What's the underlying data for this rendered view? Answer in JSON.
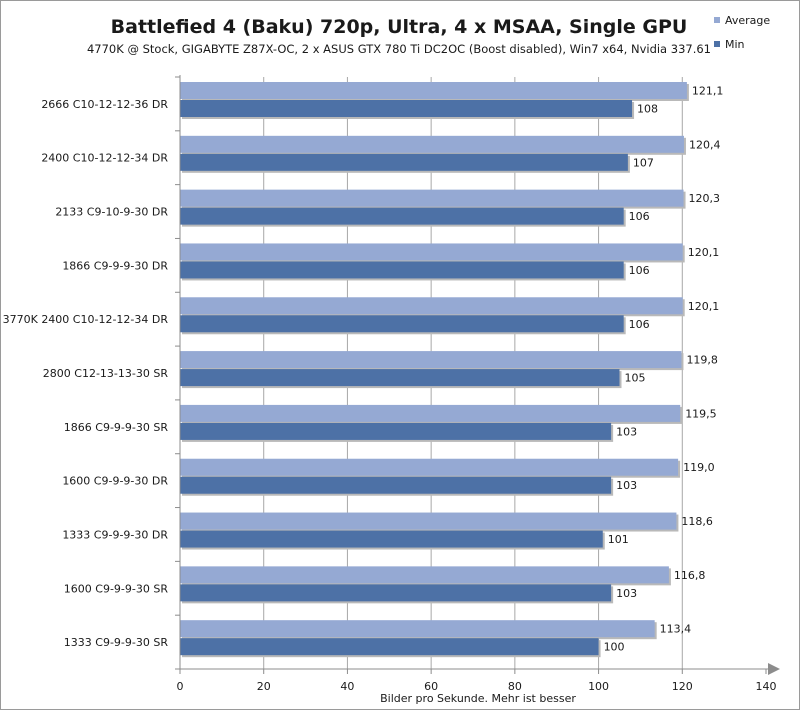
{
  "chart_data": {
    "type": "bar",
    "orientation": "horizontal",
    "title": "Battlefied 4 (Baku) 720p, Ultra, 4 x MSAA, Single GPU",
    "subtitle": "4770K @ Stock,  GIGABYTE Z87X-OC,  2 x ASUS GTX 780 Ti DC2OC (Boost disabled),  Win7  x64, Nvidia 337.61",
    "xlabel": "Bilder pro Sekunde.  Mehr  ist besser",
    "xlim": [
      0,
      140
    ],
    "xticks": [
      "0",
      "20",
      "40",
      "60",
      "80",
      "100",
      "120",
      "140"
    ],
    "grid": "vertical-major",
    "legend_position": "top-right",
    "categories": [
      "2666 C10-12-12-36 DR",
      "2400 C10-12-12-34 DR",
      "2133 C9-10-9-30 DR",
      "1866 C9-9-9-30 DR",
      "3770K 2400 C10-12-12-34 DR",
      "2800 C12-13-13-30 SR",
      "1866 C9-9-9-30 SR",
      "1600 C9-9-9-30 DR",
      "1333 C9-9-9-30 DR",
      "1600 C9-9-9-30 SR",
      "1333 C9-9-9-30 SR"
    ],
    "series": [
      {
        "name": "Average",
        "color": "#95a9d3",
        "values": [
          121.1,
          120.4,
          120.3,
          120.1,
          120.1,
          119.8,
          119.5,
          119.0,
          118.6,
          116.8,
          113.4
        ],
        "labels": [
          "121,1",
          "120,4",
          "120,3",
          "120,1",
          "120,1",
          "119,8",
          "119,5",
          "119,0",
          "118,6",
          "116,8",
          "113,4"
        ]
      },
      {
        "name": "Min",
        "color": "#4d71a6",
        "values": [
          108,
          107,
          106,
          106,
          106,
          105,
          103,
          103,
          101,
          103,
          100
        ],
        "labels": [
          "108",
          "107",
          "106",
          "106",
          "106",
          "105",
          "103",
          "103",
          "101",
          "103",
          "100"
        ]
      }
    ]
  }
}
